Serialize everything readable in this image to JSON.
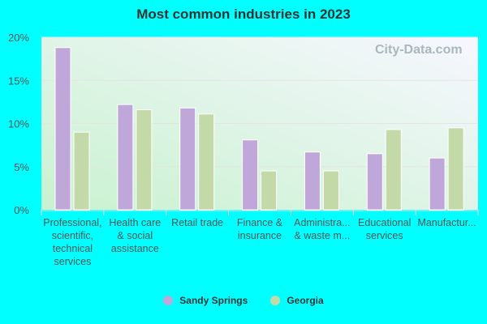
{
  "chart_data": {
    "type": "bar",
    "title": "Most common industries in 2023",
    "categories": [
      [
        "Professional,",
        "scientific,",
        "technical",
        "services"
      ],
      [
        "Health care",
        "& social",
        "assistance"
      ],
      [
        "Retail trade"
      ],
      [
        "Finance &",
        "insurance"
      ],
      [
        "Administra...",
        "& waste m..."
      ],
      [
        "Educational",
        "services"
      ],
      [
        "Manufactur..."
      ]
    ],
    "series": [
      {
        "name": "Sandy Springs",
        "color": "#bfa8d9",
        "values": [
          18.8,
          12.2,
          11.8,
          8.1,
          6.7,
          6.5,
          6.0
        ]
      },
      {
        "name": "Georgia",
        "color": "#c4d9a8",
        "values": [
          9.0,
          11.6,
          11.1,
          4.5,
          4.5,
          9.3,
          9.5
        ]
      }
    ],
    "yticks": [
      "0%",
      "5%",
      "10%",
      "15%",
      "20%"
    ],
    "ylim": [
      0,
      20
    ],
    "grid": true,
    "legend": "bottom",
    "watermark": "City-Data.com"
  }
}
